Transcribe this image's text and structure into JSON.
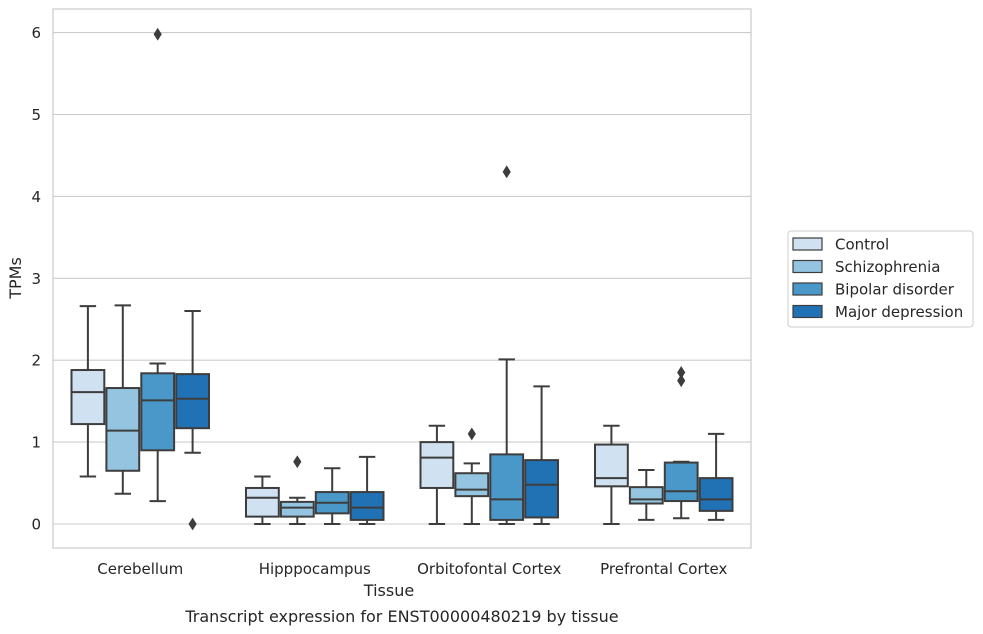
{
  "chart_data": {
    "type": "box",
    "caption": "Transcript expression for ENST00000480219 by tissue",
    "xlabel": "Tissue",
    "ylabel": "TPMs",
    "ylim": [
      -0.3,
      6.28
    ],
    "yticks": [
      "0",
      "1",
      "2",
      "3",
      "4",
      "5",
      "6"
    ],
    "grid": "horizontal",
    "legend_position": "right",
    "categories": [
      "Cerebellum",
      "Hipppocampus",
      "Orbitofontal Cortex",
      "Prefrontal Cortex"
    ],
    "series": [
      {
        "name": "Control",
        "color": "#d0e1f1",
        "boxes": [
          {
            "whislo": 0.58,
            "q1": 1.22,
            "med": 1.61,
            "q3": 1.88,
            "whishi": 2.66,
            "fliers": []
          },
          {
            "whislo": 0.0,
            "q1": 0.09,
            "med": 0.32,
            "q3": 0.44,
            "whishi": 0.58,
            "fliers": []
          },
          {
            "whislo": 0.0,
            "q1": 0.44,
            "med": 0.81,
            "q3": 1.0,
            "whishi": 1.2,
            "fliers": []
          },
          {
            "whislo": 0.0,
            "q1": 0.46,
            "med": 0.56,
            "q3": 0.97,
            "whishi": 1.2,
            "fliers": []
          }
        ]
      },
      {
        "name": "Schizophrenia",
        "color": "#94c4df",
        "boxes": [
          {
            "whislo": 0.37,
            "q1": 0.65,
            "med": 1.14,
            "q3": 1.66,
            "whishi": 2.67,
            "fliers": []
          },
          {
            "whislo": 0.0,
            "q1": 0.09,
            "med": 0.2,
            "q3": 0.27,
            "whishi": 0.32,
            "fliers": [
              0.76
            ]
          },
          {
            "whislo": 0.0,
            "q1": 0.34,
            "med": 0.42,
            "q3": 0.62,
            "whishi": 0.74,
            "fliers": [
              1.1
            ]
          },
          {
            "whislo": 0.05,
            "q1": 0.25,
            "med": 0.3,
            "q3": 0.45,
            "whishi": 0.66,
            "fliers": []
          }
        ]
      },
      {
        "name": "Bipolar disorder",
        "color": "#4a98c9",
        "boxes": [
          {
            "whislo": 0.28,
            "q1": 0.9,
            "med": 1.51,
            "q3": 1.84,
            "whishi": 1.96,
            "fliers": [
              5.98
            ]
          },
          {
            "whislo": 0.0,
            "q1": 0.13,
            "med": 0.26,
            "q3": 0.39,
            "whishi": 0.68,
            "fliers": []
          },
          {
            "whislo": 0.0,
            "q1": 0.05,
            "med": 0.3,
            "q3": 0.85,
            "whishi": 2.01,
            "fliers": [
              4.3
            ]
          },
          {
            "whislo": 0.07,
            "q1": 0.28,
            "med": 0.4,
            "q3": 0.75,
            "whishi": 0.76,
            "fliers": [
              1.75,
              1.85
            ]
          }
        ]
      },
      {
        "name": "Major depression",
        "color": "#2171b5",
        "boxes": [
          {
            "whislo": 0.87,
            "q1": 1.17,
            "med": 1.53,
            "q3": 1.83,
            "whishi": 2.6,
            "fliers": [
              0.0
            ]
          },
          {
            "whislo": 0.0,
            "q1": 0.05,
            "med": 0.2,
            "q3": 0.39,
            "whishi": 0.82,
            "fliers": []
          },
          {
            "whislo": 0.0,
            "q1": 0.08,
            "med": 0.48,
            "q3": 0.78,
            "whishi": 1.68,
            "fliers": []
          },
          {
            "whislo": 0.05,
            "q1": 0.16,
            "med": 0.3,
            "q3": 0.56,
            "whishi": 1.1,
            "fliers": []
          }
        ]
      }
    ]
  }
}
